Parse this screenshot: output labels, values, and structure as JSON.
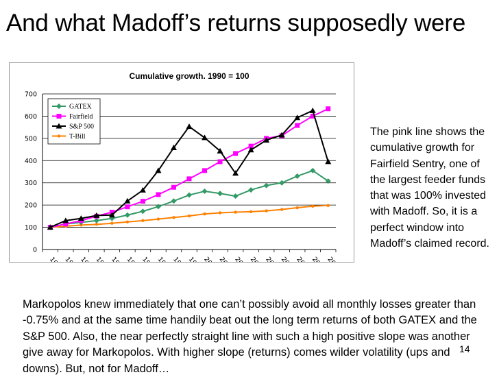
{
  "slide": {
    "title": "And what Madoff’s returns supposedly were",
    "side_note": "The pink line shows the cumulative growth for Fairfield Sentry, one of the largest feeder funds that was 100% invested with Madoff.  So, it is a perfect window into Madoff’s claimed record.",
    "caption": "Markopolos knew immediately that one can’t possibly avoid all monthly losses greater than -0.75% and at the same time handily beat out the long term returns of both GATEX and the S&P 500.  Also, the near perfectly straight line with such a high positive slope was another give away for Markopolos.  With higher slope (returns) comes wilder volatility (ups and downs).  But, not for Madoff…",
    "page_number": "14"
  },
  "chart_data": {
    "type": "line",
    "title": "Cumulative growth.  1990 = 100",
    "xlabel": "",
    "ylabel": "",
    "categories": [
      "1990",
      "1991",
      "1992",
      "1993",
      "1994",
      "1995",
      "1996",
      "1997",
      "1998",
      "1999",
      "2000",
      "2001",
      "2002",
      "2003",
      "2004",
      "2005",
      "2006",
      "2007",
      "2008"
    ],
    "ylim": [
      0,
      700
    ],
    "yticks": [
      0,
      100,
      200,
      300,
      400,
      500,
      600,
      700
    ],
    "grid": true,
    "legend_position": "top-left",
    "series": [
      {
        "name": "GATEX",
        "color": "#339966",
        "marker": "diamond",
        "values": [
          100,
          115,
          122,
          130,
          140,
          155,
          172,
          193,
          218,
          245,
          262,
          252,
          240,
          268,
          288,
          300,
          330,
          355,
          308
        ]
      },
      {
        "name": "Fairfield",
        "color": "#ff00ff",
        "marker": "square",
        "values": [
          100,
          115,
          130,
          150,
          168,
          192,
          217,
          247,
          280,
          318,
          355,
          395,
          432,
          465,
          500,
          512,
          558,
          600,
          633
        ]
      },
      {
        "name": "S&P 500",
        "color": "#000000",
        "marker": "triangle",
        "values": [
          100,
          130,
          140,
          153,
          155,
          218,
          267,
          355,
          458,
          553,
          503,
          443,
          343,
          448,
          492,
          515,
          593,
          625,
          395
        ]
      },
      {
        "name": "T-Bill",
        "color": "#ff8000",
        "marker": "circle",
        "values": [
          100,
          105,
          110,
          113,
          118,
          124,
          130,
          137,
          144,
          151,
          160,
          165,
          168,
          170,
          174,
          180,
          188,
          195,
          198
        ]
      }
    ]
  }
}
